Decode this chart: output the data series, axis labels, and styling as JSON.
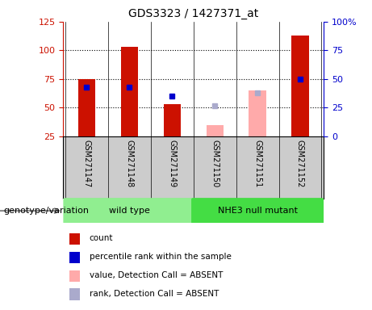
{
  "title": "GDS3323 / 1427371_at",
  "samples": [
    "GSM271147",
    "GSM271148",
    "GSM271149",
    "GSM271150",
    "GSM271151",
    "GSM271152"
  ],
  "groups": [
    {
      "label": "wild type",
      "color": "#90ee90",
      "indices": [
        0,
        1,
        2
      ]
    },
    {
      "label": "NHE3 null mutant",
      "color": "#44dd44",
      "indices": [
        3,
        4,
        5
      ]
    }
  ],
  "bar_values": [
    75,
    103,
    53,
    null,
    null,
    113
  ],
  "bar_color_present": "#cc1100",
  "bar_color_absent": "#ffaaaa",
  "absent_bars": [
    null,
    null,
    null,
    35,
    65,
    null
  ],
  "rank_dots_present": [
    68,
    68,
    60,
    null,
    null,
    75
  ],
  "rank_dots_absent": [
    null,
    null,
    null,
    52,
    63,
    null
  ],
  "rank_dot_color_present": "#0000cc",
  "rank_dot_color_absent": "#aaaacc",
  "left_ylim": [
    25,
    125
  ],
  "left_yticks": [
    25,
    50,
    75,
    100,
    125
  ],
  "right_yticks": [
    0,
    25,
    50,
    75,
    100
  ],
  "right_tick_labels": [
    "0",
    "25",
    "50",
    "75",
    "100%"
  ],
  "hlines": [
    50,
    75,
    100
  ],
  "legend_items": [
    {
      "color": "#cc1100",
      "label": "count"
    },
    {
      "color": "#0000cc",
      "label": "percentile rank within the sample"
    },
    {
      "color": "#ffaaaa",
      "label": "value, Detection Call = ABSENT"
    },
    {
      "color": "#aaaacc",
      "label": "rank, Detection Call = ABSENT"
    }
  ],
  "genotype_label": "genotype/variation",
  "sample_bg_color": "#cccccc",
  "plot_bg": "#ffffff"
}
